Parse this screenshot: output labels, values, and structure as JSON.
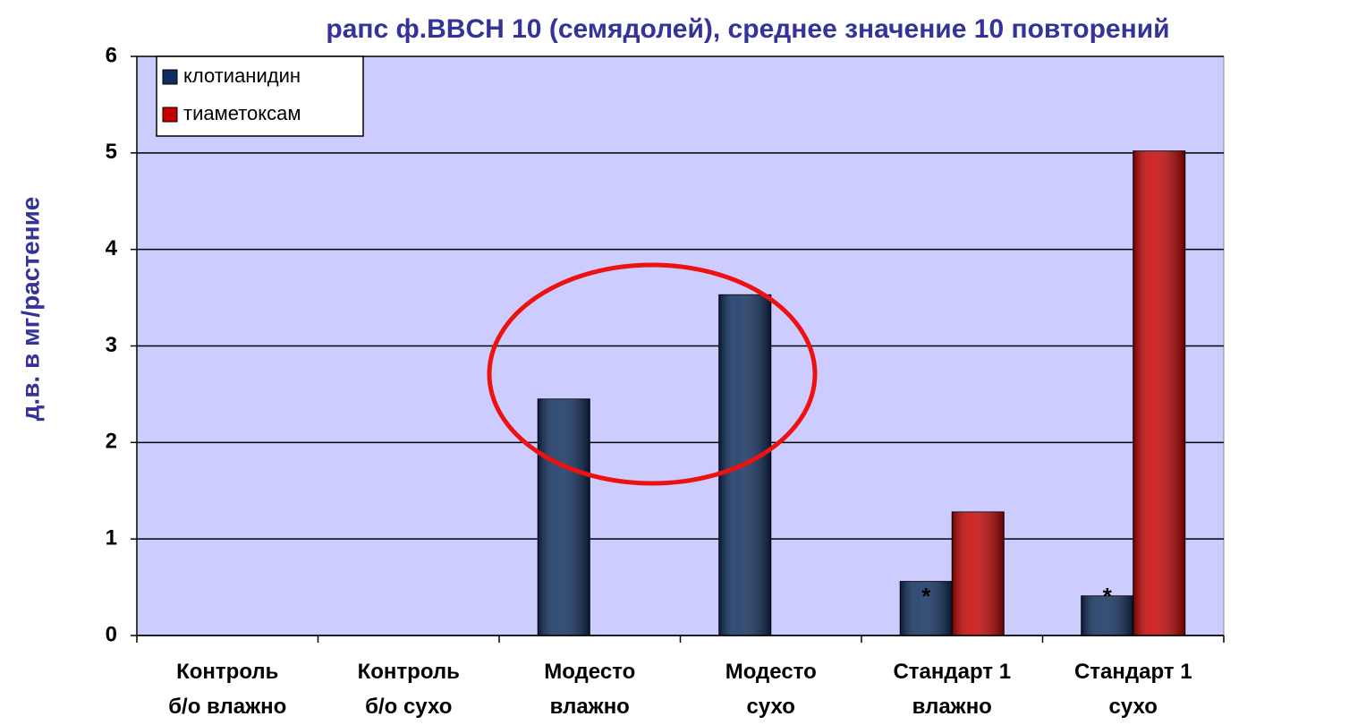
{
  "chart_data": {
    "type": "bar",
    "title": "рапс ф.BBCH 10 (семядолей), среднее значение 10 повторений",
    "y_label": "д.в. в мг/растение",
    "categories": [
      "Контроль\nб/о влажно",
      "Контроль\nб/о сухо",
      "Модесто\nвлажно",
      "Модесто\nсухо",
      "Стандарт 1\nвлажно",
      "Стандарт 1\nсухо"
    ],
    "series": [
      {
        "name": "клотианидин",
        "color": "#0d2d5e",
        "values": [
          null,
          null,
          2.45,
          3.53,
          0.56,
          0.41
        ]
      },
      {
        "name": "тиаметоксам",
        "color": "#c80000",
        "values": [
          null,
          null,
          null,
          null,
          1.28,
          5.02
        ]
      }
    ],
    "annotations": [
      {
        "text": "*",
        "series": 0,
        "category": 4
      },
      {
        "text": "*",
        "series": 0,
        "category": 5
      }
    ],
    "ylim": [
      0,
      6
    ],
    "yticks": [
      0,
      1,
      2,
      3,
      4,
      5,
      6
    ],
    "grid": true,
    "legend": "top-left",
    "plot_background": "#ccccff"
  }
}
